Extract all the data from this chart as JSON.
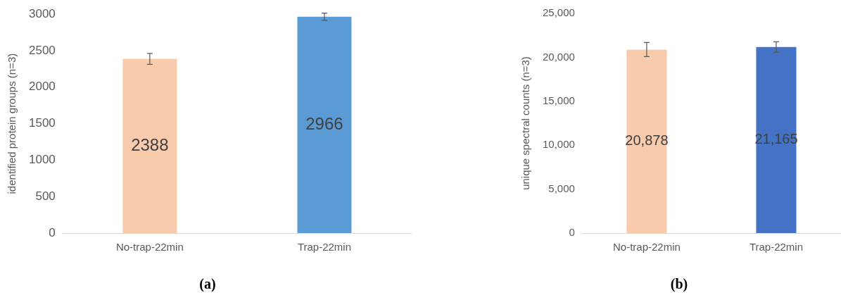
{
  "chart_data": [
    {
      "type": "bar",
      "title": "(a)",
      "ylabel": "identified protein groups (n=3)",
      "categories": [
        "No-trap-22min",
        "Trap-22min"
      ],
      "values": [
        2388,
        2966
      ],
      "colors": [
        "#f8cbad",
        "#5b9bd5"
      ],
      "errors": [
        75,
        50
      ],
      "value_labels": [
        "2388",
        "2966"
      ],
      "ylim": [
        0,
        3000
      ],
      "yticks": [
        0,
        500,
        1000,
        1500,
        2000,
        2500,
        3000
      ],
      "grid": false,
      "legend": false
    },
    {
      "type": "bar",
      "title": "(b)",
      "ylabel": "unique spectral counts (n=3)",
      "categories": [
        "No-trap-22min",
        "Trap-22min"
      ],
      "values": [
        20878,
        21165
      ],
      "colors": [
        "#f8cbad",
        "#4472c4"
      ],
      "errors": [
        800,
        600
      ],
      "value_labels": [
        "20,878",
        "21,165"
      ],
      "ylim": [
        0,
        25000
      ],
      "yticks": [
        {
          "value": 0,
          "label": "0"
        },
        {
          "value": 5000,
          "label": "5,000"
        },
        {
          "value": 10000,
          "label": "10,000"
        },
        {
          "value": 15000,
          "label": "15,000"
        },
        {
          "value": 20000,
          "label": "20,000"
        },
        {
          "value": 25000,
          "label": "25,000"
        }
      ],
      "grid": false,
      "legend": false
    }
  ]
}
